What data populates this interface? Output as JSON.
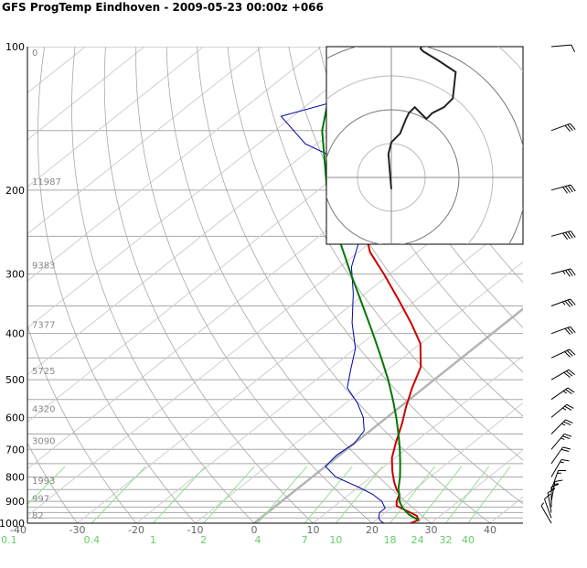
{
  "title": "GFS ProgTemp Eindhoven - 2009-05-23 00:00z +066",
  "chart_data": {
    "type": "line",
    "title": "GFS ProgTemp Eindhoven - 2009-05-23 00:00z +066",
    "xlabel": "",
    "ylabel": "",
    "y_scale": "log",
    "xlim": [
      -40,
      45
    ],
    "ylim": [
      1000,
      100
    ],
    "pressure_ticks": [
      100,
      200,
      300,
      400,
      500,
      600,
      700,
      800,
      900,
      1000
    ],
    "temperature_ticks": [
      -40,
      -30,
      -20,
      -10,
      0,
      10,
      20,
      30,
      40
    ],
    "mixing_ratio_ticks": [
      0.1,
      0.4,
      1,
      2,
      4,
      7,
      10,
      18,
      24,
      32,
      40
    ],
    "height_labels": [
      {
        "p": 1000,
        "text": "82"
      },
      {
        "p": 925,
        "text": "997"
      },
      {
        "p": 850,
        "text": "1993"
      },
      {
        "p": 700,
        "text": "3090"
      },
      {
        "p": 600,
        "text": "4320"
      },
      {
        "p": 500,
        "text": "5725"
      },
      {
        "p": 400,
        "text": "7377"
      },
      {
        "p": 300,
        "text": "9383"
      },
      {
        "p": 200,
        "text": "11987"
      },
      {
        "p": 100,
        "text": "0"
      }
    ],
    "series": [
      {
        "color": "#cc0000",
        "points": [
          [
            1000,
            26.5
          ],
          [
            985,
            27.2
          ],
          [
            965,
            26
          ],
          [
            940,
            23
          ],
          [
            920,
            20.5
          ],
          [
            900,
            19.5
          ],
          [
            870,
            18.5
          ],
          [
            850,
            17
          ],
          [
            820,
            15
          ],
          [
            780,
            12.5
          ],
          [
            730,
            9.5
          ],
          [
            680,
            7
          ],
          [
            620,
            4
          ],
          [
            570,
            1
          ],
          [
            520,
            -2
          ],
          [
            470,
            -5
          ],
          [
            420,
            -10
          ],
          [
            380,
            -16
          ],
          [
            340,
            -23
          ],
          [
            300,
            -31
          ],
          [
            270,
            -38
          ],
          [
            250,
            -42
          ],
          [
            220,
            -45
          ],
          [
            200,
            -47
          ],
          [
            170,
            -43
          ],
          [
            140,
            -38
          ]
        ]
      },
      {
        "color": "#0000aa",
        "points": [
          [
            1000,
            22
          ],
          [
            990,
            21
          ],
          [
            975,
            20
          ],
          [
            950,
            19
          ],
          [
            930,
            19
          ],
          [
            900,
            17
          ],
          [
            870,
            14
          ],
          [
            840,
            10
          ],
          [
            800,
            4
          ],
          [
            760,
            0
          ],
          [
            720,
            -0.5
          ],
          [
            680,
            0
          ],
          [
            640,
            -1
          ],
          [
            600,
            -4
          ],
          [
            560,
            -8
          ],
          [
            520,
            -13
          ],
          [
            480,
            -16
          ],
          [
            430,
            -20
          ],
          [
            380,
            -26
          ],
          [
            330,
            -32
          ],
          [
            290,
            -38
          ],
          [
            250,
            -43
          ],
          [
            220,
            -47
          ],
          [
            200,
            -48
          ],
          [
            180,
            -58
          ],
          [
            160,
            -72
          ],
          [
            140,
            -82
          ],
          [
            120,
            -69
          ],
          [
            100,
            -58
          ]
        ]
      },
      {
        "color": "#007700",
        "points": [
          [
            985,
            27.2
          ],
          [
            960,
            24.5
          ],
          [
            930,
            22
          ],
          [
            900,
            20
          ],
          [
            870,
            18.5
          ],
          [
            850,
            17.3
          ],
          [
            800,
            14.9
          ],
          [
            750,
            12.1
          ],
          [
            700,
            9
          ],
          [
            650,
            5.5
          ],
          [
            600,
            1.6
          ],
          [
            550,
            -2.8
          ],
          [
            500,
            -7.8
          ],
          [
            450,
            -13.6
          ],
          [
            400,
            -20.2
          ],
          [
            350,
            -27.8
          ],
          [
            300,
            -36.6
          ],
          [
            250,
            -46.8
          ],
          [
            200,
            -58.5
          ],
          [
            150,
            -72
          ],
          [
            100,
            -87
          ]
        ]
      }
    ],
    "hodograph_points": [
      [
        0,
        -4
      ],
      [
        -1,
        8
      ],
      [
        0,
        12
      ],
      [
        3,
        15
      ],
      [
        5,
        20
      ],
      [
        6,
        22
      ],
      [
        8,
        24
      ],
      [
        12,
        20
      ],
      [
        14,
        22
      ],
      [
        18,
        24
      ],
      [
        21,
        27
      ],
      [
        22,
        36
      ],
      [
        16,
        40
      ],
      [
        11,
        43
      ],
      [
        10,
        44
      ],
      [
        12,
        49
      ],
      [
        14,
        54
      ]
    ],
    "wind_barbs": [
      {
        "p": 100,
        "dir": 265,
        "spd": 12
      },
      {
        "p": 150,
        "dir": 250,
        "spd": 30
      },
      {
        "p": 200,
        "dir": 255,
        "spd": 40
      },
      {
        "p": 250,
        "dir": 255,
        "spd": 40
      },
      {
        "p": 300,
        "dir": 255,
        "spd": 35
      },
      {
        "p": 350,
        "dir": 250,
        "spd": 35
      },
      {
        "p": 400,
        "dir": 250,
        "spd": 30
      },
      {
        "p": 450,
        "dir": 245,
        "spd": 30
      },
      {
        "p": 500,
        "dir": 240,
        "spd": 30
      },
      {
        "p": 550,
        "dir": 235,
        "spd": 25
      },
      {
        "p": 600,
        "dir": 230,
        "spd": 25
      },
      {
        "p": 650,
        "dir": 225,
        "spd": 25
      },
      {
        "p": 700,
        "dir": 220,
        "spd": 25
      },
      {
        "p": 750,
        "dir": 215,
        "spd": 20
      },
      {
        "p": 800,
        "dir": 210,
        "spd": 15
      },
      {
        "p": 850,
        "dir": 200,
        "spd": 15
      },
      {
        "p": 900,
        "dir": 190,
        "spd": 15
      },
      {
        "p": 925,
        "dir": 180,
        "spd": 15
      },
      {
        "p": 950,
        "dir": 170,
        "spd": 10
      },
      {
        "p": 975,
        "dir": 160,
        "spd": 10
      },
      {
        "p": 1000,
        "dir": 150,
        "spd": 5
      }
    ]
  }
}
